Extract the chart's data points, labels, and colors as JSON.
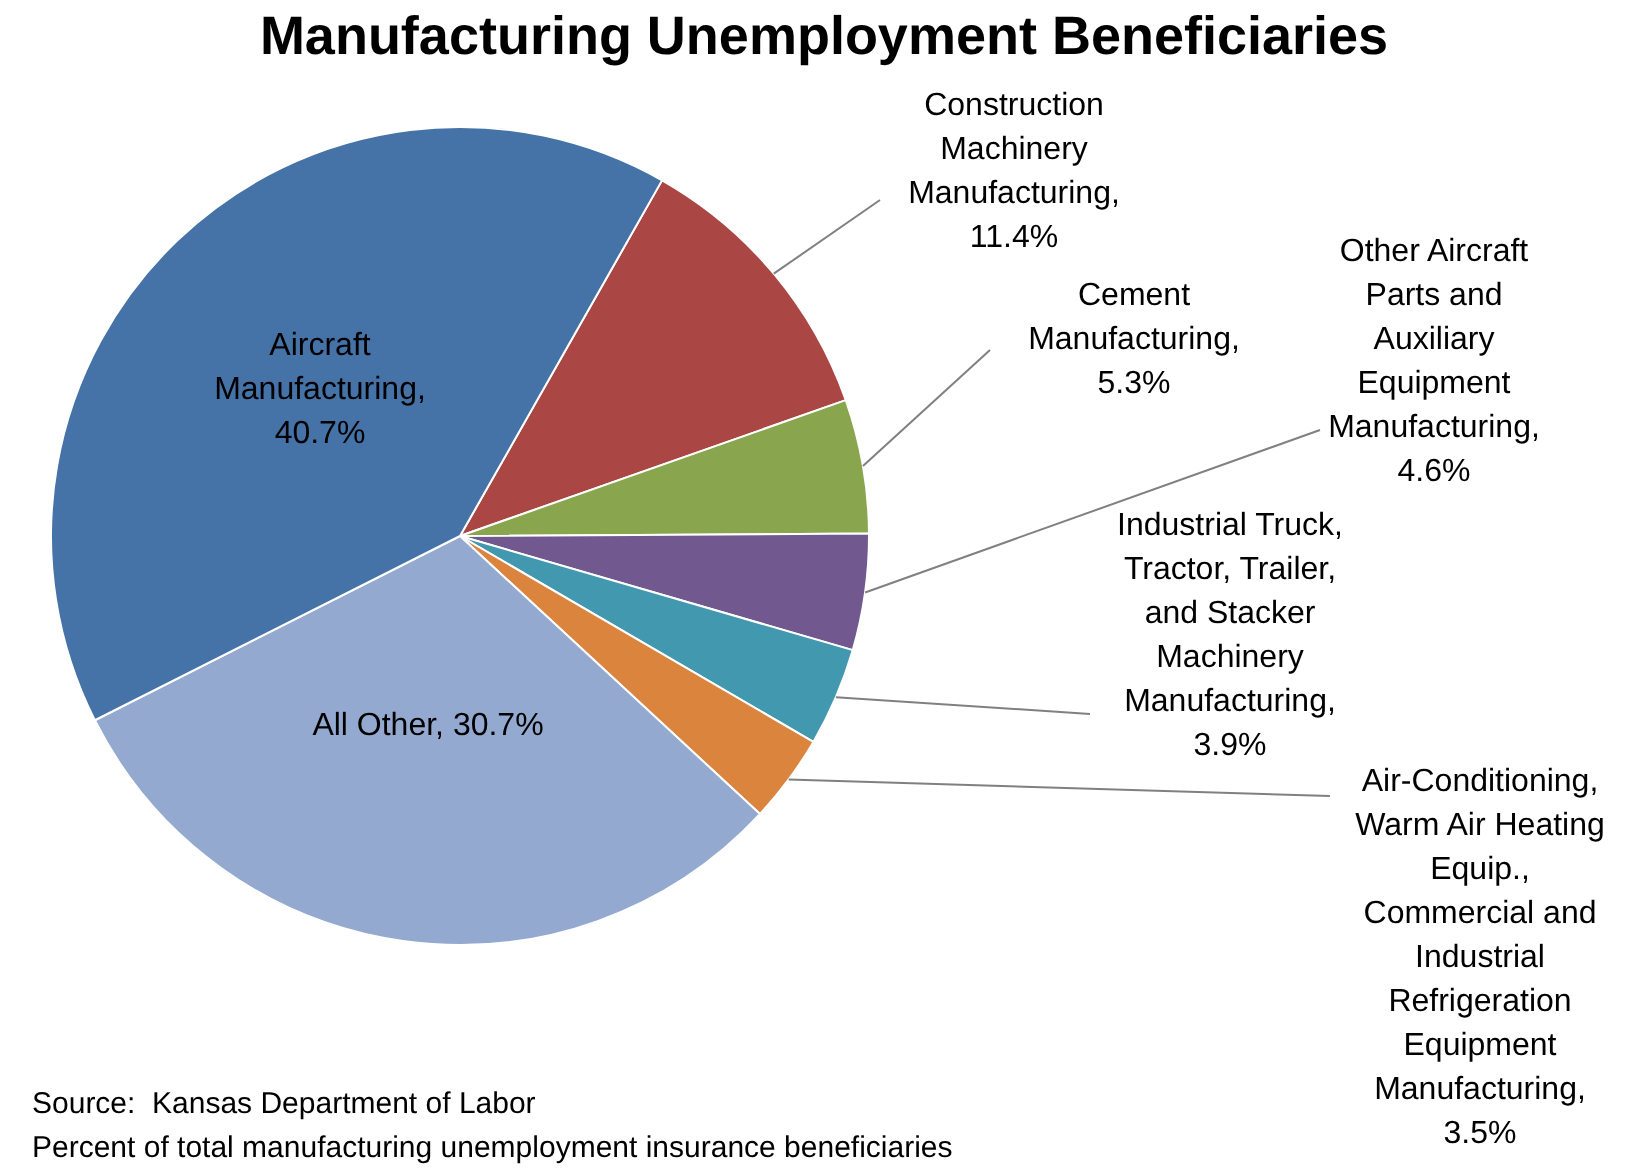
{
  "chart_data": {
    "type": "pie",
    "title": "Manufacturing Unemployment Beneficiaries",
    "categories": [
      "Construction Machinery Manufacturing, 11.4%",
      "Cement Manufacturing, 5.3%",
      "Other Aircraft Parts and Auxiliary Equipment Manufacturing, 4.6%",
      "Industrial Truck, Tractor, Trailer, and Stacker Machinery Manufacturing, 3.9%",
      "Air-Conditioning, Warm Air Heating Equip., Commercial and Industrial Refrigeration Equipment Manufacturing, 3.5%",
      "All Other, 30.7%",
      "Aircraft Manufacturing, 40.7%"
    ],
    "values": [
      11.4,
      5.3,
      4.6,
      3.9,
      3.5,
      30.7,
      40.7
    ],
    "colors": [
      "#aa4643",
      "#89a54e",
      "#71588f",
      "#4198af",
      "#db843d",
      "#93a9d0",
      "#4572a7"
    ],
    "legend": false,
    "annotations": [
      "Source:  Kansas Department of Labor",
      "Percent of total manufacturing unemployment insurance beneficiaries"
    ]
  }
}
